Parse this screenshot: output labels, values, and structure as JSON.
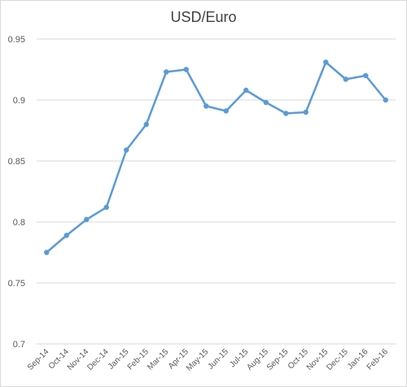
{
  "chart_data": {
    "type": "line",
    "title": "USD/Euro",
    "xlabel": "",
    "ylabel": "",
    "categories": [
      "Sep-14",
      "Oct-14",
      "Nov-14",
      "Dec-14",
      "Jan-15",
      "Feb-15",
      "Mar-15",
      "Apr-15",
      "May-15",
      "Jun-15",
      "Jul-15",
      "Aug-15",
      "Sep-15",
      "Oct-15",
      "Nov-15",
      "Dec-15",
      "Jan-16",
      "Feb-16"
    ],
    "series": [
      {
        "values": [
          0.775,
          0.789,
          0.802,
          0.812,
          0.859,
          0.88,
          0.923,
          0.925,
          0.895,
          0.891,
          0.908,
          0.898,
          0.889,
          0.89,
          0.931,
          0.917,
          0.92,
          0.9
        ]
      }
    ],
    "yticks": [
      "0.7",
      "0.75",
      "0.8",
      "0.85",
      "0.9",
      "0.95"
    ],
    "ylim": [
      0.7,
      0.95
    ],
    "grid": true,
    "legend": "none",
    "colors": {
      "series": "#5b9bd5",
      "grid": "#d9d9d9"
    }
  }
}
